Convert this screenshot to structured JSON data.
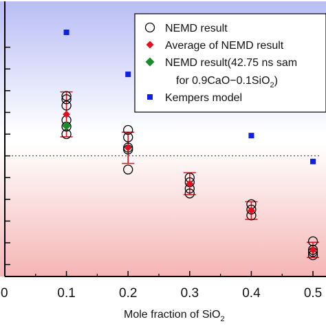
{
  "chart_data": {
    "type": "scatter",
    "xlabel": "Mole fraction of SiO",
    "xlabel_subscript": "2",
    "x_ticks": [
      "0",
      "0.1",
      "0.2",
      "0.3",
      "0.4",
      "0.5"
    ],
    "xlim": [
      0,
      0.51
    ],
    "ylim": [
      0,
      1
    ],
    "y_ticks_values": [
      0.049,
      0.138,
      0.227,
      0.316,
      0.405,
      0.494,
      0.583,
      0.672,
      0.761,
      0.85,
      0.939
    ],
    "reference_line": {
      "y": 0.494,
      "style": "dotted"
    },
    "background": {
      "top_color": "#b8bdf5",
      "bottom_color": "#f5b5b5"
    },
    "legend": {
      "placement": "top-right",
      "entries": [
        {
          "label": "NEMD result",
          "marker": "open-circle",
          "color": "#000000"
        },
        {
          "label": "Average of NEMD result",
          "marker": "diamond",
          "color": "#e01020"
        },
        {
          "label": "NEMD result(42.75 ns sam",
          "label_line2": "for 0.9CaO−0.1SiO",
          "label_line2_sub": "2",
          "label_line2_end": ")",
          "marker": "diamond",
          "color": "#1a8a2a"
        },
        {
          "label": "Kempers model",
          "marker": "square",
          "color": "#1020e0"
        }
      ]
    },
    "series": [
      {
        "name": "NEMD result",
        "marker": "open-circle",
        "points": [
          [
            0.1,
            0.739
          ],
          [
            0.1,
            0.726
          ],
          [
            0.1,
            0.7
          ],
          [
            0.1,
            0.64
          ],
          [
            0.1,
            0.614
          ],
          [
            0.1,
            0.583
          ],
          [
            0.2,
            0.6
          ],
          [
            0.2,
            0.57
          ],
          [
            0.2,
            0.528
          ],
          [
            0.2,
            0.438
          ],
          [
            0.2,
            0.52
          ],
          [
            0.3,
            0.405
          ],
          [
            0.3,
            0.386
          ],
          [
            0.3,
            0.34
          ],
          [
            0.3,
            0.36
          ],
          [
            0.4,
            0.296
          ],
          [
            0.4,
            0.25
          ],
          [
            0.4,
            0.274
          ],
          [
            0.5,
            0.144
          ],
          [
            0.5,
            0.109
          ],
          [
            0.5,
            0.087
          ],
          [
            0.5,
            0.1
          ]
        ]
      },
      {
        "name": "Average of NEMD result",
        "marker": "diamond",
        "points": [
          [
            0.1,
            0.664
          ],
          [
            0.2,
            0.527
          ],
          [
            0.3,
            0.38
          ],
          [
            0.4,
            0.27
          ],
          [
            0.5,
            0.109
          ]
        ],
        "errors": [
          0.092,
          0.064,
          0.045,
          0.036,
          0.031
        ]
      },
      {
        "name": "NEMD result(42.75 ns sam for 0.9CaO−0.1SiO2)",
        "marker": "diamond",
        "points": [
          [
            0.1,
            0.617
          ]
        ]
      },
      {
        "name": "Kempers model",
        "marker": "square",
        "points": [
          [
            0.1,
            1.0
          ],
          [
            0.2,
            0.828
          ],
          [
            0.3,
            0.709
          ],
          [
            0.4,
            0.577
          ],
          [
            0.5,
            0.471
          ]
        ]
      }
    ]
  },
  "colors": {
    "open_circle": "#000000",
    "average": "#e01020",
    "sample": "#1a8a2a",
    "kempers": "#1020e0",
    "error_bar": "#e01020"
  }
}
